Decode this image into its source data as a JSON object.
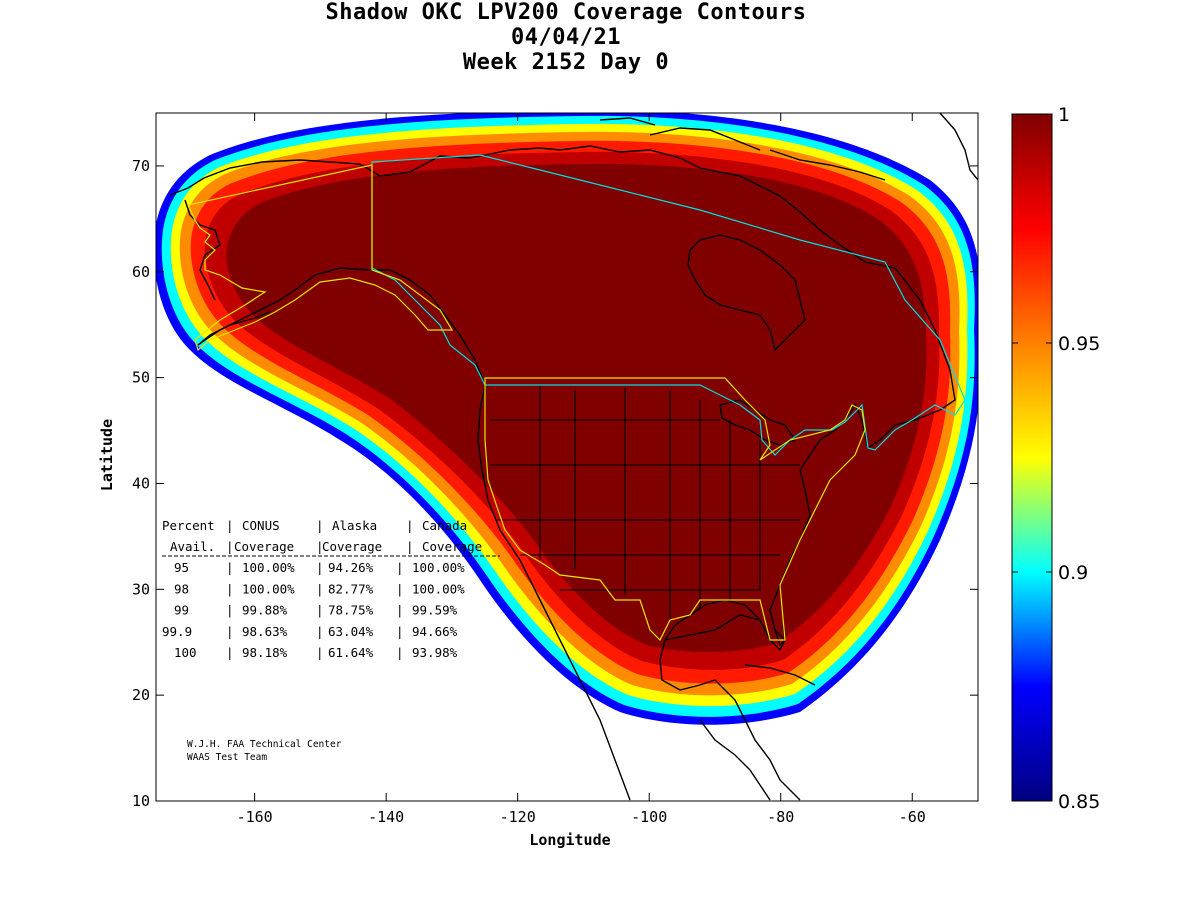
{
  "title": {
    "line1": "Shadow OKC LPV200 Coverage Contours",
    "line2": "04/04/21",
    "line3": "Week 2152 Day 0"
  },
  "map": {
    "x_axis": {
      "label": "Longitude",
      "range": [
        -175,
        -50
      ],
      "ticks": [
        -160,
        -140,
        -120,
        -100,
        -80,
        -60
      ],
      "tick_labels": [
        "-160",
        "-140",
        "-120",
        "-100",
        "-80",
        "-60"
      ]
    },
    "y_axis": {
      "label": "Latitude",
      "range": [
        10,
        75
      ],
      "ticks": [
        10,
        20,
        30,
        40,
        50,
        60,
        70
      ],
      "tick_labels": [
        "10",
        "20",
        "30",
        "40",
        "50",
        "60",
        "70"
      ]
    },
    "colorbar": {
      "range": [
        0.85,
        1
      ],
      "ticks": [
        0.85,
        0.9,
        0.95,
        1
      ],
      "tick_labels": [
        "0.85",
        "0.9",
        "0.95",
        "1"
      ],
      "colormap": "jet",
      "colors": [
        "#000080",
        "#0000ff",
        "#00ffff",
        "#ffff00",
        "#ff8000",
        "#ff0000",
        "#800000"
      ]
    },
    "colors": {
      "region_outline_cyan": "#00e0e0",
      "region_outline_yellow": "#e6e600",
      "coastline": "#000000"
    },
    "availability_table": {
      "header1": [
        "Percent",
        "CONUS",
        "Alaska",
        "Canada"
      ],
      "header2": [
        "Avail.",
        "Coverage",
        "Coverage",
        "Coverage"
      ],
      "rows": [
        {
          "avail": "95",
          "conus": "100.00%",
          "alaska": "94.26%",
          "canada": "100.00%"
        },
        {
          "avail": "98",
          "conus": "100.00%",
          "alaska": "82.77%",
          "canada": "100.00%"
        },
        {
          "avail": "99",
          "conus": "99.88%",
          "alaska": "78.75%",
          "canada": "99.59%"
        },
        {
          "avail": "99.9",
          "conus": "98.63%",
          "alaska": "63.04%",
          "canada": "94.66%"
        },
        {
          "avail": "100",
          "conus": "98.18%",
          "alaska": "61.64%",
          "canada": "93.98%"
        }
      ]
    },
    "credit": {
      "line1": "W.J.H. FAA Technical Center",
      "line2": "WAAS Test Team"
    }
  }
}
